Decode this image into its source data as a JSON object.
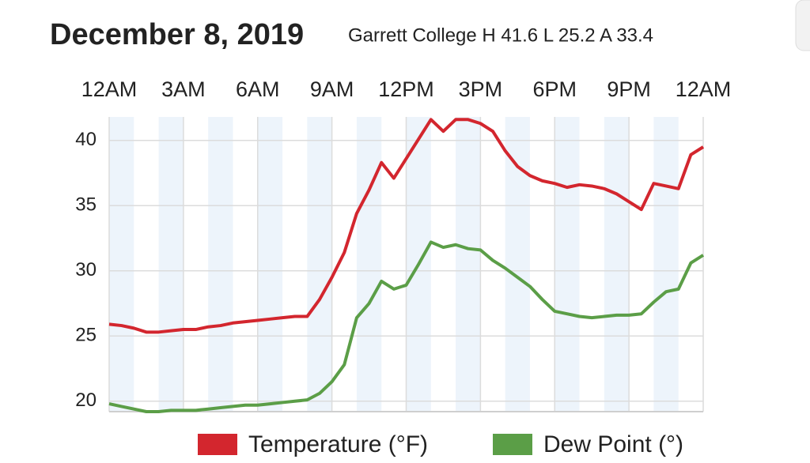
{
  "chart_data": {
    "type": "line",
    "title": "December 8, 2019",
    "subtitle": "Garrett College H 41.6 L 25.2 A 33.4",
    "x": [
      0,
      0.5,
      1,
      1.5,
      2,
      2.5,
      3,
      3.5,
      4,
      4.5,
      5,
      5.5,
      6,
      6.5,
      7,
      7.5,
      8,
      8.5,
      9,
      9.5,
      10,
      10.5,
      11,
      11.5,
      12,
      12.5,
      13,
      13.5,
      14,
      14.5,
      15,
      15.5,
      16,
      16.5,
      17,
      17.5,
      18,
      18.5,
      19,
      19.5,
      20,
      20.5,
      21,
      21.5,
      22,
      22.5,
      23,
      23.5,
      24
    ],
    "series": [
      {
        "name": "Temperature (°F)",
        "color": "#d3262e",
        "values": [
          25.9,
          25.8,
          25.6,
          25.3,
          25.3,
          25.4,
          25.5,
          25.5,
          25.7,
          25.8,
          26.0,
          26.1,
          26.2,
          26.3,
          26.4,
          26.5,
          26.5,
          27.8,
          29.5,
          31.4,
          34.4,
          36.2,
          38.3,
          37.1,
          38.6,
          40.1,
          41.6,
          40.7,
          41.6,
          41.6,
          41.3,
          40.7,
          39.2,
          38.0,
          37.3,
          36.9,
          36.7,
          36.4,
          36.6,
          36.5,
          36.3,
          35.9,
          35.3,
          34.7,
          36.7,
          36.5,
          36.3,
          38.9,
          39.5
        ]
      },
      {
        "name": "Dew Point (°)",
        "color": "#5b9e47",
        "values": [
          19.8,
          19.6,
          19.4,
          19.2,
          19.2,
          19.3,
          19.3,
          19.3,
          19.4,
          19.5,
          19.6,
          19.7,
          19.7,
          19.8,
          19.9,
          20.0,
          20.1,
          20.6,
          21.5,
          22.8,
          26.4,
          27.5,
          29.2,
          28.6,
          28.9,
          30.5,
          32.2,
          31.8,
          32.0,
          31.7,
          31.6,
          30.8,
          30.2,
          29.5,
          28.8,
          27.8,
          26.9,
          26.7,
          26.5,
          26.4,
          26.5,
          26.6,
          26.6,
          26.7,
          27.6,
          28.4,
          28.6,
          30.6,
          31.2
        ]
      }
    ],
    "xlim": [
      0,
      24
    ],
    "xticks": [
      {
        "value": 0,
        "label": "12AM"
      },
      {
        "value": 3,
        "label": "3AM"
      },
      {
        "value": 6,
        "label": "6AM"
      },
      {
        "value": 9,
        "label": "9AM"
      },
      {
        "value": 12,
        "label": "12PM"
      },
      {
        "value": 15,
        "label": "3PM"
      },
      {
        "value": 18,
        "label": "6PM"
      },
      {
        "value": 21,
        "label": "9PM"
      },
      {
        "value": 24,
        "label": "12AM"
      }
    ],
    "ylim": [
      19.2,
      41.8
    ],
    "yticks": [
      20,
      25,
      30,
      35,
      40
    ],
    "grid": true,
    "legend": "bottom"
  }
}
